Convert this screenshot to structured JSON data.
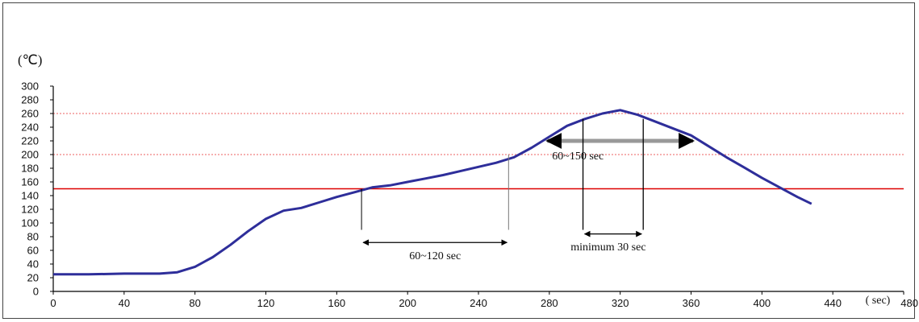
{
  "chart_data": {
    "type": "line",
    "ylabel": "(℃)",
    "xlabel": "( sec)",
    "xlim": [
      0,
      480
    ],
    "ylim": [
      0,
      300
    ],
    "x_ticks": [
      "0",
      "40",
      "80",
      "120",
      "160",
      "200",
      "240",
      "280",
      "320",
      "360",
      "400",
      "440",
      "480"
    ],
    "y_ticks": [
      "0",
      "20",
      "40",
      "60",
      "80",
      "100",
      "120",
      "140",
      "160",
      "180",
      "200",
      "220",
      "240",
      "260",
      "280",
      "300"
    ],
    "grid": false,
    "series": [
      {
        "color": "#2e2e9a",
        "x": [
          0,
          20,
          40,
          60,
          70,
          80,
          90,
          100,
          110,
          120,
          130,
          140,
          150,
          160,
          170,
          180,
          190,
          200,
          210,
          220,
          230,
          240,
          250,
          260,
          270,
          280,
          290,
          300,
          310,
          320,
          330,
          340,
          350,
          360,
          370,
          380,
          390,
          400,
          410,
          420,
          428
        ],
        "y": [
          25,
          25,
          26,
          26,
          28,
          36,
          50,
          68,
          88,
          106,
          118,
          122,
          130,
          138,
          145,
          152,
          155,
          160,
          165,
          170,
          176,
          182,
          188,
          196,
          210,
          226,
          242,
          252,
          260,
          265,
          258,
          248,
          238,
          228,
          212,
          196,
          181,
          166,
          152,
          138,
          128
        ]
      }
    ],
    "reference_lines": [
      {
        "y": 260,
        "color": "#f08080",
        "style": "dotted"
      },
      {
        "y": 200,
        "color": "#f08080",
        "style": "dotted"
      },
      {
        "y": 150,
        "color": "#dd0000",
        "style": "solid"
      }
    ],
    "annotations": [
      {
        "label": "60~120 sec",
        "from": 174,
        "to": 257,
        "y": 145,
        "color": "#000000"
      },
      {
        "label": "60~150 sec",
        "from": 277,
        "to": 363,
        "y": 220,
        "color": "#999999"
      },
      {
        "label": "minimum 30 sec",
        "from": 299,
        "to": 333,
        "y": 130,
        "color": "#000000"
      }
    ]
  }
}
